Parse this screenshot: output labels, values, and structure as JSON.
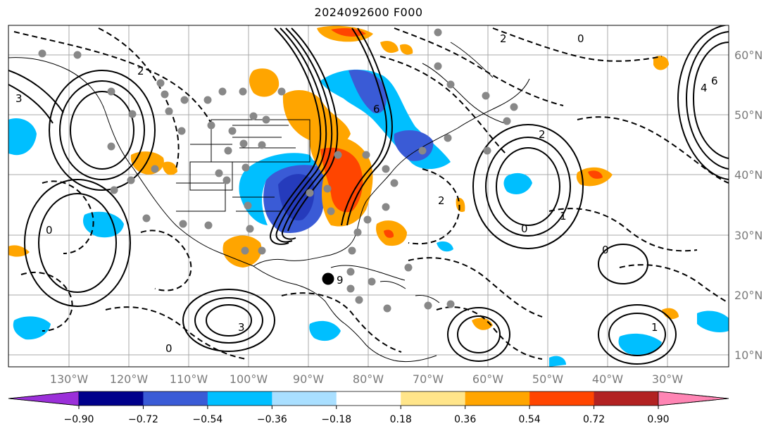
{
  "title": "2024092600 F000",
  "map": {
    "lat_labels": [
      "60°N",
      "50°N",
      "40°N",
      "30°N",
      "20°N",
      "10°N"
    ],
    "lon_labels": [
      "130°W",
      "120°W",
      "110°W",
      "100°W",
      "90°W",
      "80°W",
      "70°W",
      "60°W",
      "50°W",
      "40°W",
      "30°W"
    ],
    "contour_labels": [
      "2",
      "3",
      "0",
      "1",
      "4",
      "6",
      "9"
    ],
    "storm_marker": "tropical-cyclone-center"
  },
  "colorbar": {
    "ticks": [
      "−0.90",
      "−0.72",
      "−0.54",
      "−0.36",
      "−0.18",
      "0.18",
      "0.36",
      "0.54",
      "0.72",
      "0.90"
    ],
    "colors": [
      "#9b30d9",
      "#00008b",
      "#3a5bd6",
      "#00bfff",
      "#a9dfff",
      "#ffffff",
      "#ffe58a",
      "#ffa500",
      "#ff4500",
      "#b22222",
      "#ff85b4"
    ]
  }
}
